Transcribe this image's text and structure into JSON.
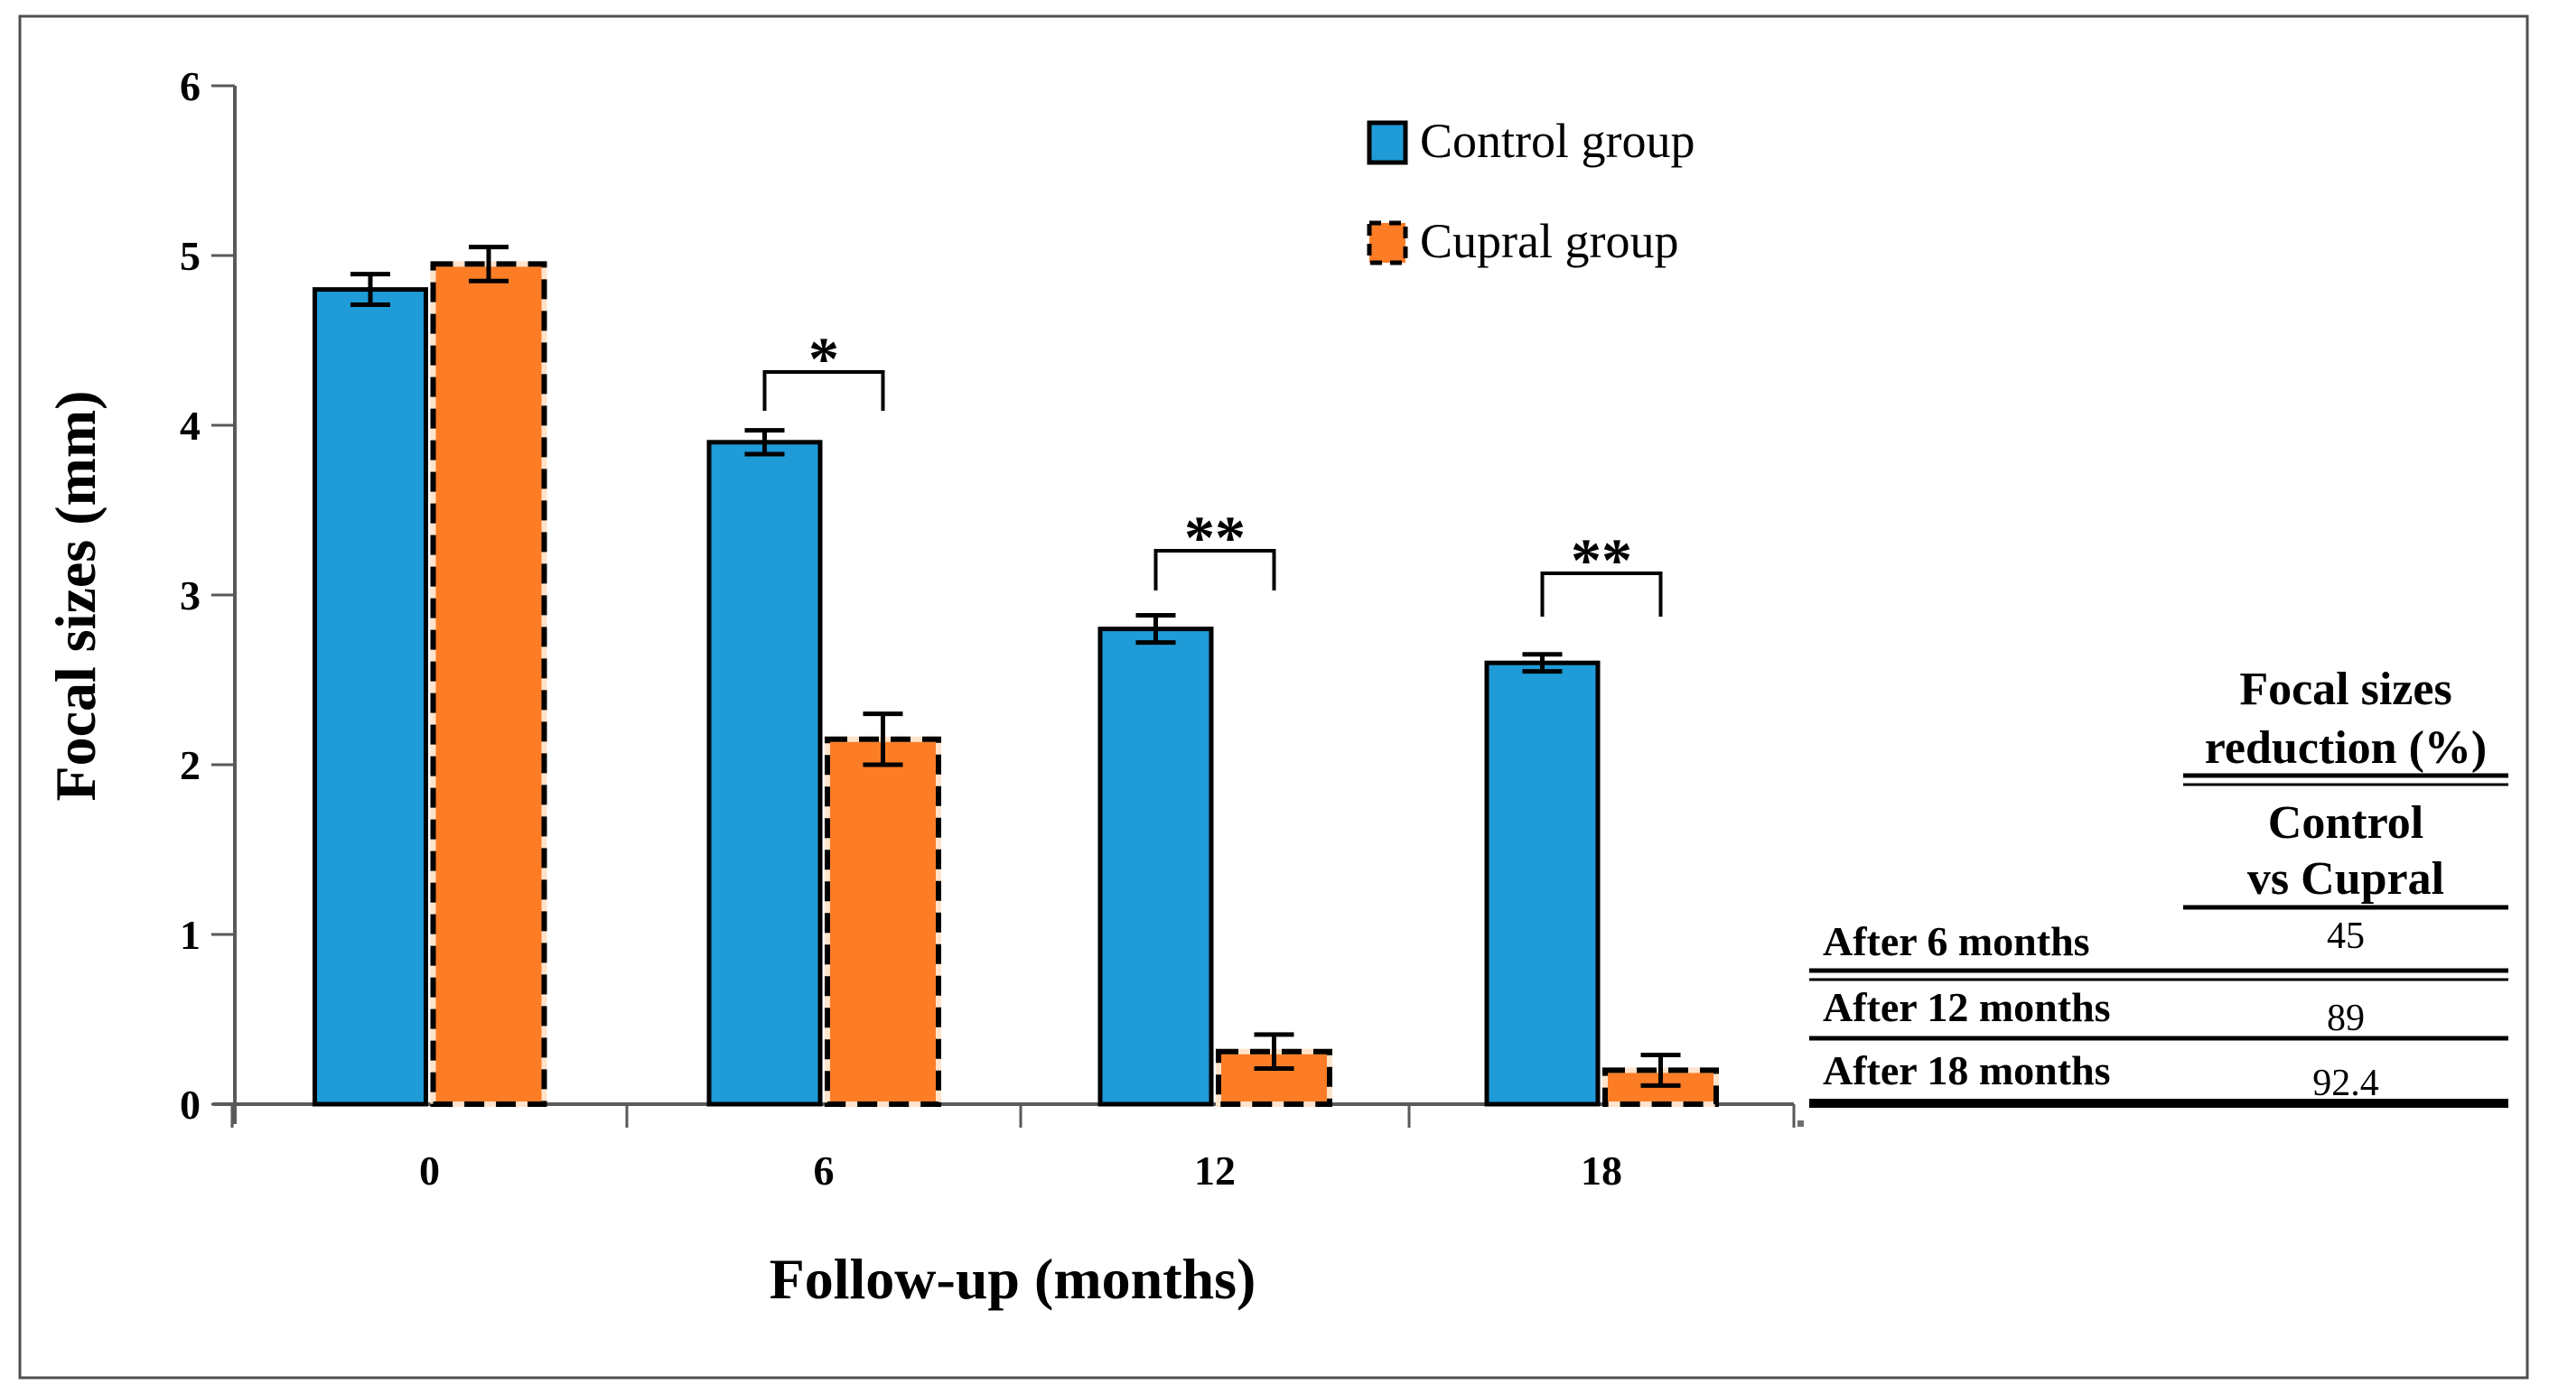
{
  "chart_data": {
    "type": "bar",
    "title": "",
    "xlabel": "Follow-up (months)",
    "ylabel": "Focal sizes (mm)",
    "categories": [
      "0",
      "6",
      "12",
      "18"
    ],
    "series": [
      {
        "name": "Control group",
        "color": "#1F9BD7",
        "border": "solid",
        "values": [
          4.8,
          3.9,
          2.8,
          2.6
        ],
        "errors": [
          0.09,
          0.07,
          0.08,
          0.05
        ]
      },
      {
        "name": "Cupral group",
        "color": "#FC7D26",
        "border": "dashed",
        "values": [
          4.95,
          2.15,
          0.31,
          0.2
        ],
        "errors": [
          0.1,
          0.15,
          0.1,
          0.09
        ]
      }
    ],
    "ylim": [
      0,
      6
    ],
    "ytick_labels": [
      "0",
      "1",
      "2",
      "3",
      "4",
      "5",
      "6"
    ],
    "grid": false,
    "legend_position": "top-right",
    "significance": [
      {
        "category": "6",
        "label": "*"
      },
      {
        "category": "12",
        "label": "**"
      },
      {
        "category": "18",
        "label": "**"
      }
    ]
  },
  "legend": {
    "items": [
      {
        "label": "Control group",
        "swatch": "blue-solid-border"
      },
      {
        "label": "Cupral group",
        "swatch": "orange-dashed-border"
      }
    ]
  },
  "table": {
    "header_line1": "Focal sizes",
    "header_line2": "reduction (%)",
    "subheader_line1": "Control",
    "subheader_line2": "vs Cupral",
    "rows": [
      {
        "label": "After 6 months",
        "value": "45"
      },
      {
        "label": "After 12 months",
        "value": "89"
      },
      {
        "label": "After 18 months",
        "value": "92.4"
      }
    ]
  },
  "colors": {
    "control_fill": "#1F9BD7",
    "cupral_fill": "#FC7D26",
    "cupral_dash_gap": "#FFE3CB",
    "axis": "#595959",
    "frame": "#4f4f4f",
    "bar_border": "#000000",
    "table_rule": "#000000"
  }
}
